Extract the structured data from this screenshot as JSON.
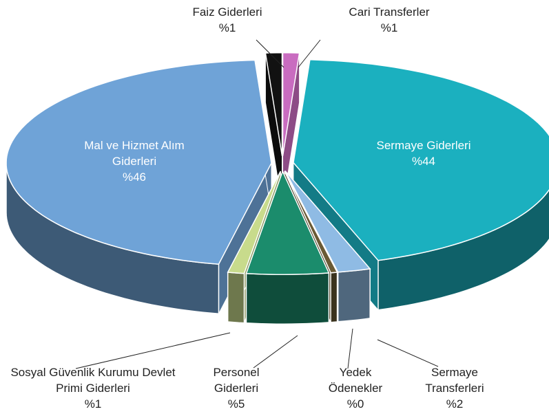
{
  "chart_data": {
    "type": "pie3d",
    "categories": [
      "Cari Transferler",
      "Sermaye Giderleri",
      "Sermaye Transferleri",
      "Yedek Ödenekler",
      "Personel Giderleri",
      "Sosyal Güvenlik Kurumu Devlet Primi Giderleri",
      "Mal ve Hizmet Alım Giderleri",
      "Faiz Giderleri"
    ],
    "values": [
      1,
      44,
      2,
      0.4,
      5,
      1,
      46,
      1
    ],
    "value_labels": [
      "%1",
      "%44",
      "%2",
      "%0",
      "%5",
      "%1",
      "%46",
      "%1"
    ],
    "colors": [
      "#c96cc0",
      "#1bb0bf",
      "#8fbbe4",
      "#6a5a35",
      "#1b8c6c",
      "#c8db8c",
      "#6fa3d7",
      "#111111"
    ]
  }
}
